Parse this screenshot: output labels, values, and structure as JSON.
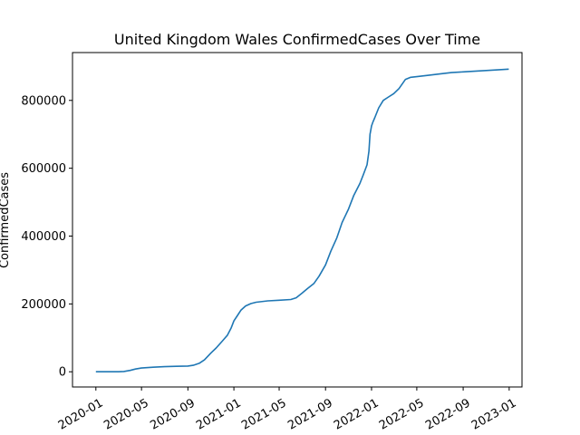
{
  "chart_data": {
    "type": "line",
    "title": "United Kingdom Wales ConfirmedCases Over Time",
    "xlabel": "",
    "ylabel": "ConfirmedCases",
    "xlim": [
      "2019-10-31",
      "2023-02-04"
    ],
    "ylim": [
      -44800,
      941000
    ],
    "grid": false,
    "x_ticks": [
      "2020-01",
      "2020-05",
      "2020-09",
      "2021-01",
      "2021-05",
      "2021-09",
      "2022-01",
      "2022-05",
      "2022-09",
      "2023-01"
    ],
    "y_ticks": [
      0,
      200000,
      400000,
      600000,
      800000
    ],
    "y_tick_labels": [
      "0",
      "200000",
      "400000",
      "600000",
      "800000"
    ],
    "series": [
      {
        "color": "#1f77b4",
        "x": [
          "2020-01-01",
          "2020-02-01",
          "2020-03-01",
          "2020-03-15",
          "2020-04-01",
          "2020-04-15",
          "2020-05-01",
          "2020-06-01",
          "2020-07-01",
          "2020-08-01",
          "2020-09-01",
          "2020-09-15",
          "2020-10-01",
          "2020-10-15",
          "2020-11-01",
          "2020-11-15",
          "2020-12-01",
          "2020-12-15",
          "2020-12-25",
          "2021-01-01",
          "2021-01-10",
          "2021-01-20",
          "2021-02-01",
          "2021-02-15",
          "2021-03-01",
          "2021-04-01",
          "2021-05-01",
          "2021-06-01",
          "2021-06-15",
          "2021-07-01",
          "2021-07-15",
          "2021-08-01",
          "2021-08-15",
          "2021-09-01",
          "2021-09-15",
          "2021-10-01",
          "2021-10-15",
          "2021-11-01",
          "2021-11-15",
          "2021-12-01",
          "2021-12-10",
          "2021-12-20",
          "2021-12-25",
          "2021-12-28",
          "2022-01-01",
          "2022-01-05",
          "2022-01-10",
          "2022-01-20",
          "2022-02-01",
          "2022-02-15",
          "2022-03-01",
          "2022-03-15",
          "2022-04-01",
          "2022-04-15",
          "2022-05-01",
          "2022-06-01",
          "2022-07-01",
          "2022-08-01",
          "2022-09-01",
          "2022-10-01",
          "2022-11-01",
          "2022-12-01",
          "2022-12-31"
        ],
        "y": [
          0,
          0,
          100,
          800,
          4000,
          8000,
          11000,
          13500,
          15000,
          16000,
          17000,
          19000,
          25000,
          35000,
          55000,
          70000,
          90000,
          108000,
          130000,
          150000,
          165000,
          182000,
          194000,
          201000,
          205000,
          209000,
          211000,
          213000,
          218000,
          232000,
          245000,
          260000,
          282000,
          315000,
          355000,
          395000,
          440000,
          480000,
          520000,
          555000,
          580000,
          610000,
          650000,
          700000,
          725000,
          737000,
          750000,
          778000,
          800000,
          810000,
          820000,
          835000,
          862000,
          868000,
          870000,
          874000,
          878000,
          882000,
          884000,
          886000,
          888000,
          890000,
          892000
        ]
      }
    ]
  }
}
